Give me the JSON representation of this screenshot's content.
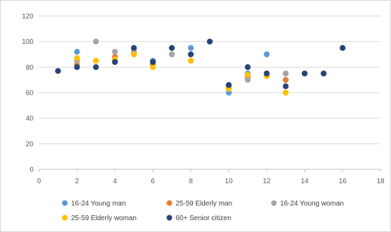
{
  "chart_data": {
    "type": "scatter",
    "title": "",
    "xlabel": "",
    "ylabel": "",
    "xlim": [
      0,
      18
    ],
    "ylim": [
      0,
      120
    ],
    "x_ticks": [
      0,
      2,
      4,
      6,
      8,
      10,
      12,
      14,
      16,
      18
    ],
    "y_ticks": [
      0,
      20,
      40,
      60,
      80,
      100,
      120
    ],
    "grid": "horizontal",
    "legend_position": "bottom",
    "series": [
      {
        "name": "16-24 Young man",
        "color": "#5b9bd5",
        "points": [
          [
            2,
            92
          ],
          [
            5,
            92
          ],
          [
            6,
            85
          ],
          [
            8,
            95
          ],
          [
            10,
            60
          ],
          [
            11,
            75
          ],
          [
            12,
            90
          ],
          [
            13,
            70
          ]
        ]
      },
      {
        "name": "25-59 Elderly man",
        "color": "#ed7d31",
        "points": [
          [
            2,
            82
          ],
          [
            3,
            85
          ],
          [
            4,
            88
          ],
          [
            5,
            90
          ],
          [
            6,
            82
          ],
          [
            10,
            64
          ],
          [
            11,
            72
          ],
          [
            12,
            73
          ],
          [
            13,
            70
          ]
        ]
      },
      {
        "name": "16-24 Young woman",
        "color": "#a5a5a5",
        "points": [
          [
            2,
            85
          ],
          [
            3,
            100
          ],
          [
            4,
            92
          ],
          [
            5,
            92
          ],
          [
            7,
            90
          ],
          [
            10,
            65
          ],
          [
            11,
            70
          ],
          [
            12,
            75
          ],
          [
            13,
            75
          ]
        ]
      },
      {
        "name": "25-59 Elderly woman",
        "color": "#ffc000",
        "points": [
          [
            2,
            87
          ],
          [
            3,
            85
          ],
          [
            4,
            86
          ],
          [
            5,
            90
          ],
          [
            6,
            80
          ],
          [
            8,
            85
          ],
          [
            10,
            63
          ],
          [
            11,
            74
          ],
          [
            12,
            73
          ],
          [
            13,
            60
          ]
        ]
      },
      {
        "name": "60+ Senior citizen",
        "color": "#264478",
        "points": [
          [
            1,
            77
          ],
          [
            2,
            80
          ],
          [
            3,
            80
          ],
          [
            4,
            84
          ],
          [
            5,
            95
          ],
          [
            6,
            84
          ],
          [
            7,
            95
          ],
          [
            8,
            90
          ],
          [
            9,
            100
          ],
          [
            10,
            66
          ],
          [
            11,
            80
          ],
          [
            12,
            75
          ],
          [
            13,
            65
          ],
          [
            14,
            75
          ],
          [
            15,
            75
          ],
          [
            16,
            95
          ]
        ]
      }
    ]
  }
}
